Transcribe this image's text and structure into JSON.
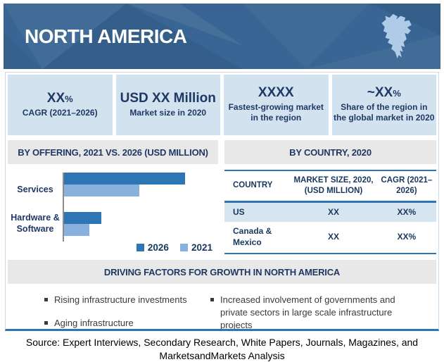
{
  "header": {
    "title": "NORTH AMERICA"
  },
  "colors": {
    "header_bg": "#386593",
    "stat_box_bg": "#D3E2EF",
    "navy_text": "#1F3864",
    "strip_gray": "#E9E8E8",
    "accent_dark": "#2E75B6",
    "accent_light": "#89B1DD",
    "row_highlight": "#D7E5F1",
    "border_light": "#C9DBEC"
  },
  "stats": [
    {
      "value": "XX",
      "suffix": "%",
      "label": "CAGR (2021–2026)"
    },
    {
      "value": "USD XX Million",
      "suffix": "",
      "label": "Market size in 2020"
    },
    {
      "value": "XXXX",
      "suffix": "",
      "label": "Fastest-growing market\nin the region"
    },
    {
      "value": "~XX",
      "suffix": "%",
      "label": "Share of the region in\nthe global market in 2020"
    }
  ],
  "chart_data": {
    "type": "bar",
    "orientation": "horizontal",
    "title": "BY OFFERING, 2021 VS. 2026 (USD MILLION)",
    "categories": [
      "Services",
      "Hardware & Software"
    ],
    "series": [
      {
        "name": "2026",
        "values": [
          169,
          52
        ],
        "color": "#2E75B6"
      },
      {
        "name": "2021",
        "values": [
          105,
          35
        ],
        "color": "#89B1DD"
      }
    ],
    "value_labels_shown": false,
    "values_are_estimated_relative_units": true,
    "xlim": [
      0,
      200
    ],
    "legend_position": "bottom-right",
    "grid": false
  },
  "by_country": {
    "title": "BY COUNTRY, 2020",
    "columns": [
      "COUNTRY",
      "MARKET SIZE, 2020, (USD MILLION)",
      "CAGR (2021–2026)"
    ],
    "rows": [
      {
        "cells": [
          "US",
          "XX",
          "XX%"
        ],
        "highlight": true
      },
      {
        "cells": [
          "Canada & Mexico",
          "XX",
          "XX%"
        ],
        "highlight": false
      }
    ]
  },
  "driving_factors": {
    "title": "DRIVING FACTORS FOR GROWTH IN NORTH AMERICA",
    "columns": [
      [
        "Rising infrastructure investments",
        "Aging infrastructure"
      ],
      [
        "Increased involvement of governments and private sectors in large scale infrastructure projects"
      ]
    ]
  },
  "source": {
    "text": "Source: Expert Interviews, Secondary Research, White Papers, Journals, Magazines, and MarketsandMarkets Analysis"
  }
}
